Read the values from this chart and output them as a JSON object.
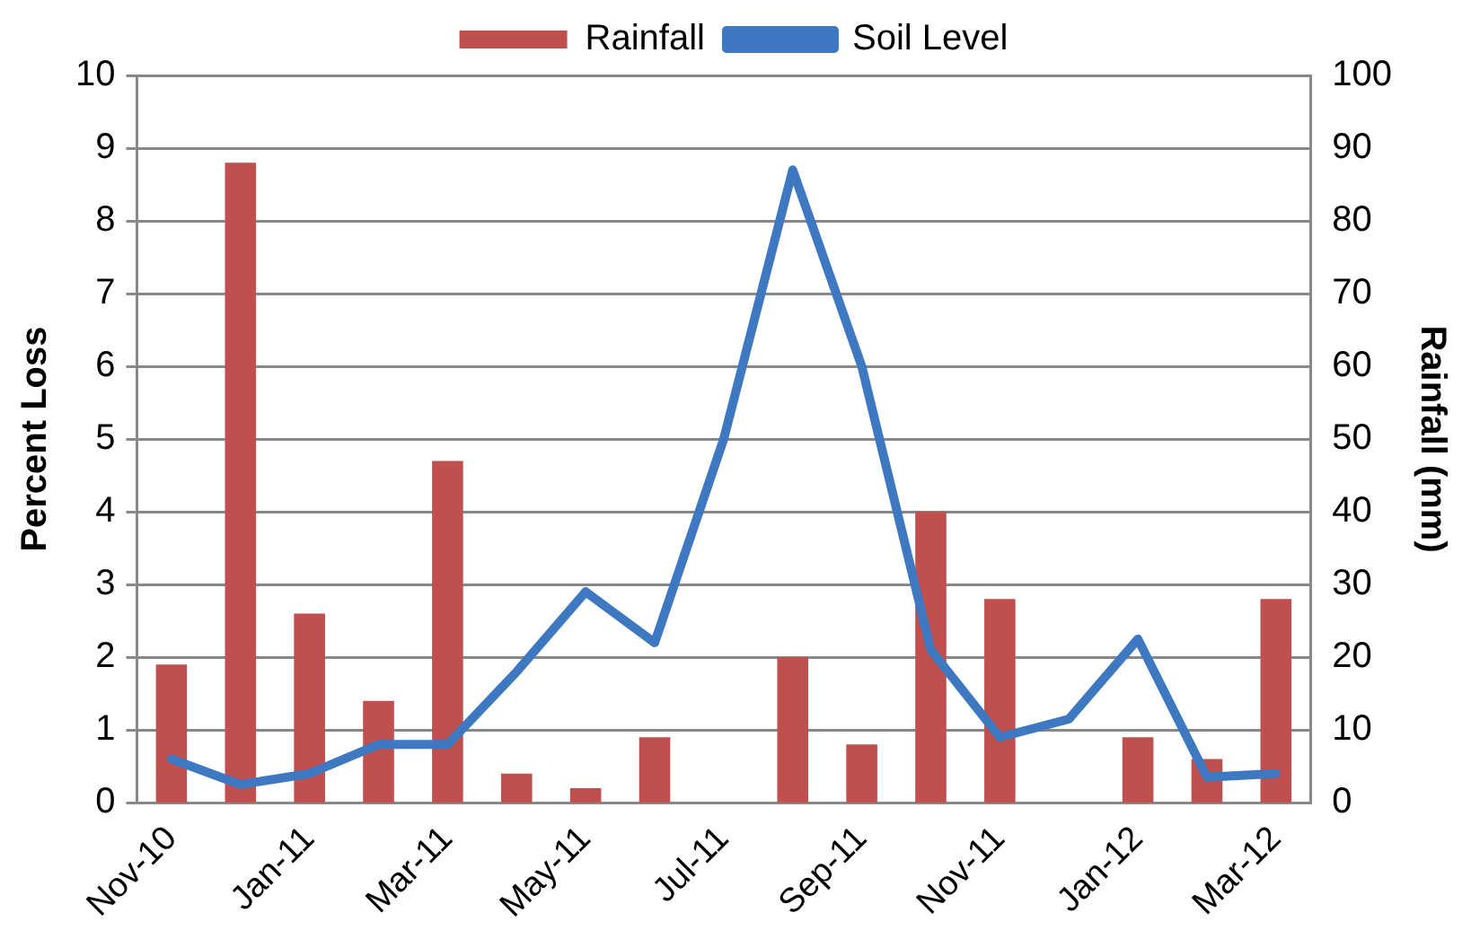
{
  "chart_data": {
    "type": "bar",
    "ylabel": "Percent Loss",
    "y2label": "Rainfall (mm)",
    "categories": [
      "Nov-10",
      null,
      "Jan-11",
      null,
      "Mar-11",
      null,
      "May-11",
      null,
      "Jul-11",
      null,
      "Sep-11",
      null,
      "Nov-11",
      null,
      "Jan-12",
      null,
      "Mar-12"
    ],
    "series": [
      {
        "name": "Rainfall",
        "axis": "y2",
        "color": "#c0504d",
        "values": [
          19,
          88,
          26,
          14,
          47,
          4,
          2,
          9,
          0,
          20,
          8,
          40,
          28,
          0,
          9,
          6,
          28
        ]
      },
      {
        "name": "Soil Level",
        "type": "line",
        "color": "#3d78c0",
        "values": [
          0.6,
          0.25,
          0.4,
          0.8,
          0.8,
          1.8,
          2.9,
          2.2,
          5.0,
          8.7,
          6.0,
          2.1,
          0.9,
          1.15,
          2.25,
          0.35,
          0.4
        ]
      }
    ],
    "ylim": [
      0,
      10
    ],
    "yticks": [
      0,
      1,
      2,
      3,
      4,
      5,
      6,
      7,
      8,
      9,
      10
    ],
    "y2lim": [
      0,
      100
    ],
    "y2ticks": [
      0,
      10,
      20,
      30,
      40,
      50,
      60,
      70,
      80,
      90,
      100
    ],
    "grid": "y",
    "legend": "top"
  }
}
